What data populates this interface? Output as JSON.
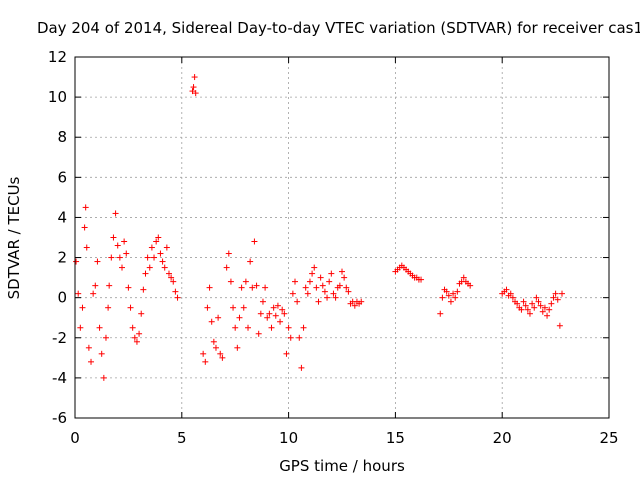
{
  "chart_data": {
    "type": "scatter",
    "title": "Day 204 of 2014, Sidereal Day-to-day VTEC variation (SDTVAR) for receiver cas1",
    "xlabel": "GPS time / hours",
    "ylabel": "SDTVAR / TECUs",
    "xlim": [
      0,
      25
    ],
    "ylim": [
      -6,
      12
    ],
    "xticks": [
      "0",
      "5",
      "10",
      "15",
      "20",
      "25"
    ],
    "yticks": [
      "-6",
      "-4",
      "-2",
      "0",
      "2",
      "4",
      "6",
      "8",
      "10",
      "12"
    ],
    "grid": true,
    "marker": "+",
    "color": "#ff0000",
    "series": [
      {
        "name": "SDTVAR",
        "x": [
          0.05,
          0.15,
          0.25,
          0.35,
          0.45,
          0.5,
          0.55,
          0.65,
          0.75,
          0.85,
          0.95,
          1.05,
          1.15,
          1.25,
          1.35,
          1.45,
          1.55,
          1.6,
          1.7,
          1.8,
          1.9,
          2.0,
          2.1,
          2.2,
          2.3,
          2.4,
          2.5,
          2.6,
          2.7,
          2.8,
          2.9,
          3.0,
          3.1,
          3.2,
          3.3,
          3.4,
          3.5,
          3.6,
          3.7,
          3.8,
          3.9,
          4.0,
          4.1,
          4.2,
          4.3,
          4.4,
          4.5,
          4.6,
          4.7,
          4.8,
          5.5,
          5.55,
          5.6,
          5.65,
          6.0,
          6.1,
          6.2,
          6.3,
          6.4,
          6.5,
          6.6,
          6.7,
          6.8,
          6.9,
          7.1,
          7.2,
          7.3,
          7.4,
          7.5,
          7.6,
          7.7,
          7.8,
          7.9,
          8.0,
          8.1,
          8.2,
          8.3,
          8.4,
          8.5,
          8.6,
          8.7,
          8.8,
          8.9,
          9.0,
          9.1,
          9.2,
          9.3,
          9.4,
          9.5,
          9.6,
          9.7,
          9.8,
          9.9,
          10.0,
          10.1,
          10.2,
          10.3,
          10.4,
          10.5,
          10.6,
          10.7,
          10.8,
          10.9,
          11.0,
          11.1,
          11.2,
          11.3,
          11.4,
          11.5,
          11.6,
          11.7,
          11.8,
          11.9,
          12.0,
          12.1,
          12.2,
          12.3,
          12.4,
          12.5,
          12.6,
          12.7,
          12.8,
          12.9,
          13.0,
          13.1,
          13.2,
          13.3,
          13.4,
          15.0,
          15.1,
          15.2,
          15.3,
          15.4,
          15.5,
          15.6,
          15.7,
          15.8,
          15.9,
          16.0,
          16.1,
          16.2,
          17.1,
          17.2,
          17.3,
          17.4,
          17.5,
          17.6,
          17.7,
          17.8,
          17.9,
          18.0,
          18.1,
          18.2,
          18.3,
          18.4,
          18.5,
          20.0,
          20.1,
          20.2,
          20.3,
          20.4,
          20.5,
          20.6,
          20.7,
          20.8,
          20.9,
          21.0,
          21.1,
          21.2,
          21.3,
          21.4,
          21.5,
          21.6,
          21.7,
          21.8,
          21.9,
          22.0,
          22.1,
          22.2,
          22.3,
          22.4,
          22.5,
          22.6,
          22.7,
          22.8
        ],
        "y": [
          1.8,
          0.2,
          -1.5,
          -0.5,
          3.5,
          4.5,
          2.5,
          -2.5,
          -3.2,
          0.2,
          0.6,
          1.8,
          -1.5,
          -2.8,
          -4.0,
          -2.0,
          -0.5,
          0.6,
          2.0,
          3.0,
          4.2,
          2.6,
          2.0,
          1.5,
          2.8,
          2.2,
          0.5,
          -0.5,
          -1.5,
          -2.0,
          -2.2,
          -1.8,
          -0.8,
          0.4,
          1.2,
          2.0,
          1.5,
          2.5,
          2.0,
          2.8,
          3.0,
          2.2,
          1.8,
          1.5,
          2.5,
          1.2,
          1.0,
          0.8,
          0.3,
          0.0,
          10.3,
          10.5,
          11.0,
          10.2,
          -2.8,
          -3.2,
          -0.5,
          0.5,
          -1.2,
          -2.2,
          -2.5,
          -1.0,
          -2.8,
          -3.0,
          1.5,
          2.2,
          0.8,
          -0.5,
          -1.5,
          -2.5,
          -1.0,
          0.5,
          -0.5,
          0.8,
          -1.5,
          1.8,
          0.5,
          2.8,
          0.6,
          -1.8,
          -0.8,
          -0.2,
          0.5,
          -1.0,
          -0.8,
          -1.5,
          -0.5,
          -0.9,
          -0.4,
          -1.2,
          -0.6,
          -0.8,
          -2.8,
          -1.5,
          -2.0,
          0.2,
          0.8,
          -0.2,
          -2.0,
          -3.5,
          -1.5,
          0.5,
          0.2,
          0.8,
          1.2,
          1.5,
          0.5,
          -0.2,
          1.0,
          0.6,
          0.3,
          0.0,
          0.8,
          1.2,
          0.2,
          0.0,
          0.5,
          0.6,
          1.3,
          1.0,
          0.5,
          0.3,
          -0.3,
          -0.2,
          -0.4,
          -0.2,
          -0.3,
          -0.2,
          1.3,
          1.4,
          1.5,
          1.6,
          1.5,
          1.4,
          1.3,
          1.2,
          1.1,
          1.0,
          1.0,
          0.9,
          0.9,
          -0.8,
          0.0,
          0.4,
          0.3,
          0.1,
          -0.2,
          0.2,
          0.0,
          0.3,
          0.7,
          0.8,
          1.0,
          0.8,
          0.7,
          0.6,
          0.2,
          0.3,
          0.4,
          0.1,
          0.2,
          0.0,
          -0.2,
          -0.3,
          -0.5,
          -0.6,
          -0.2,
          -0.4,
          -0.6,
          -0.8,
          -0.3,
          -0.5,
          0.0,
          -0.2,
          -0.4,
          -0.7,
          -0.5,
          -0.9,
          -0.6,
          -0.3,
          0.0,
          0.2,
          -0.1,
          -1.4,
          0.2
        ]
      }
    ]
  }
}
